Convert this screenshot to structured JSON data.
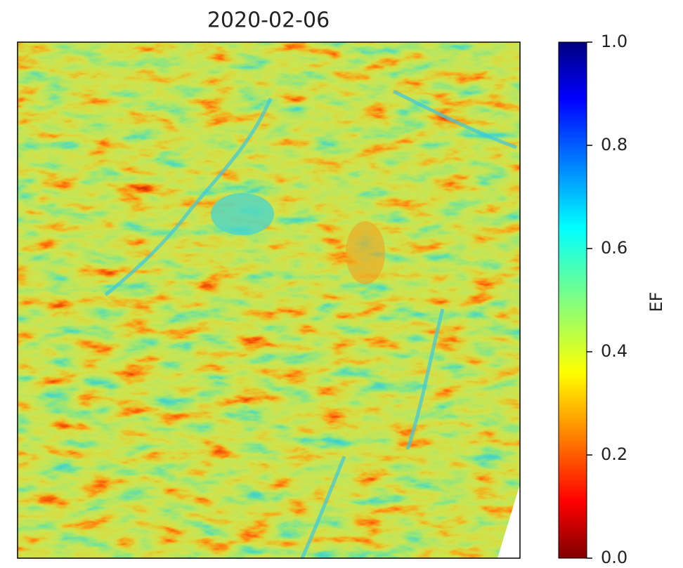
{
  "chart_data": {
    "type": "heatmap",
    "title": "2020-02-06",
    "colorbar": {
      "label": "EF",
      "colormap": "jet_r",
      "lim": [
        0,
        1
      ],
      "ticks": [
        {
          "value": 0,
          "label": "0.0"
        },
        0.2,
        0.4,
        0.6,
        0.8,
        {
          "value": 1,
          "label": "1.0"
        }
      ]
    }
  }
}
